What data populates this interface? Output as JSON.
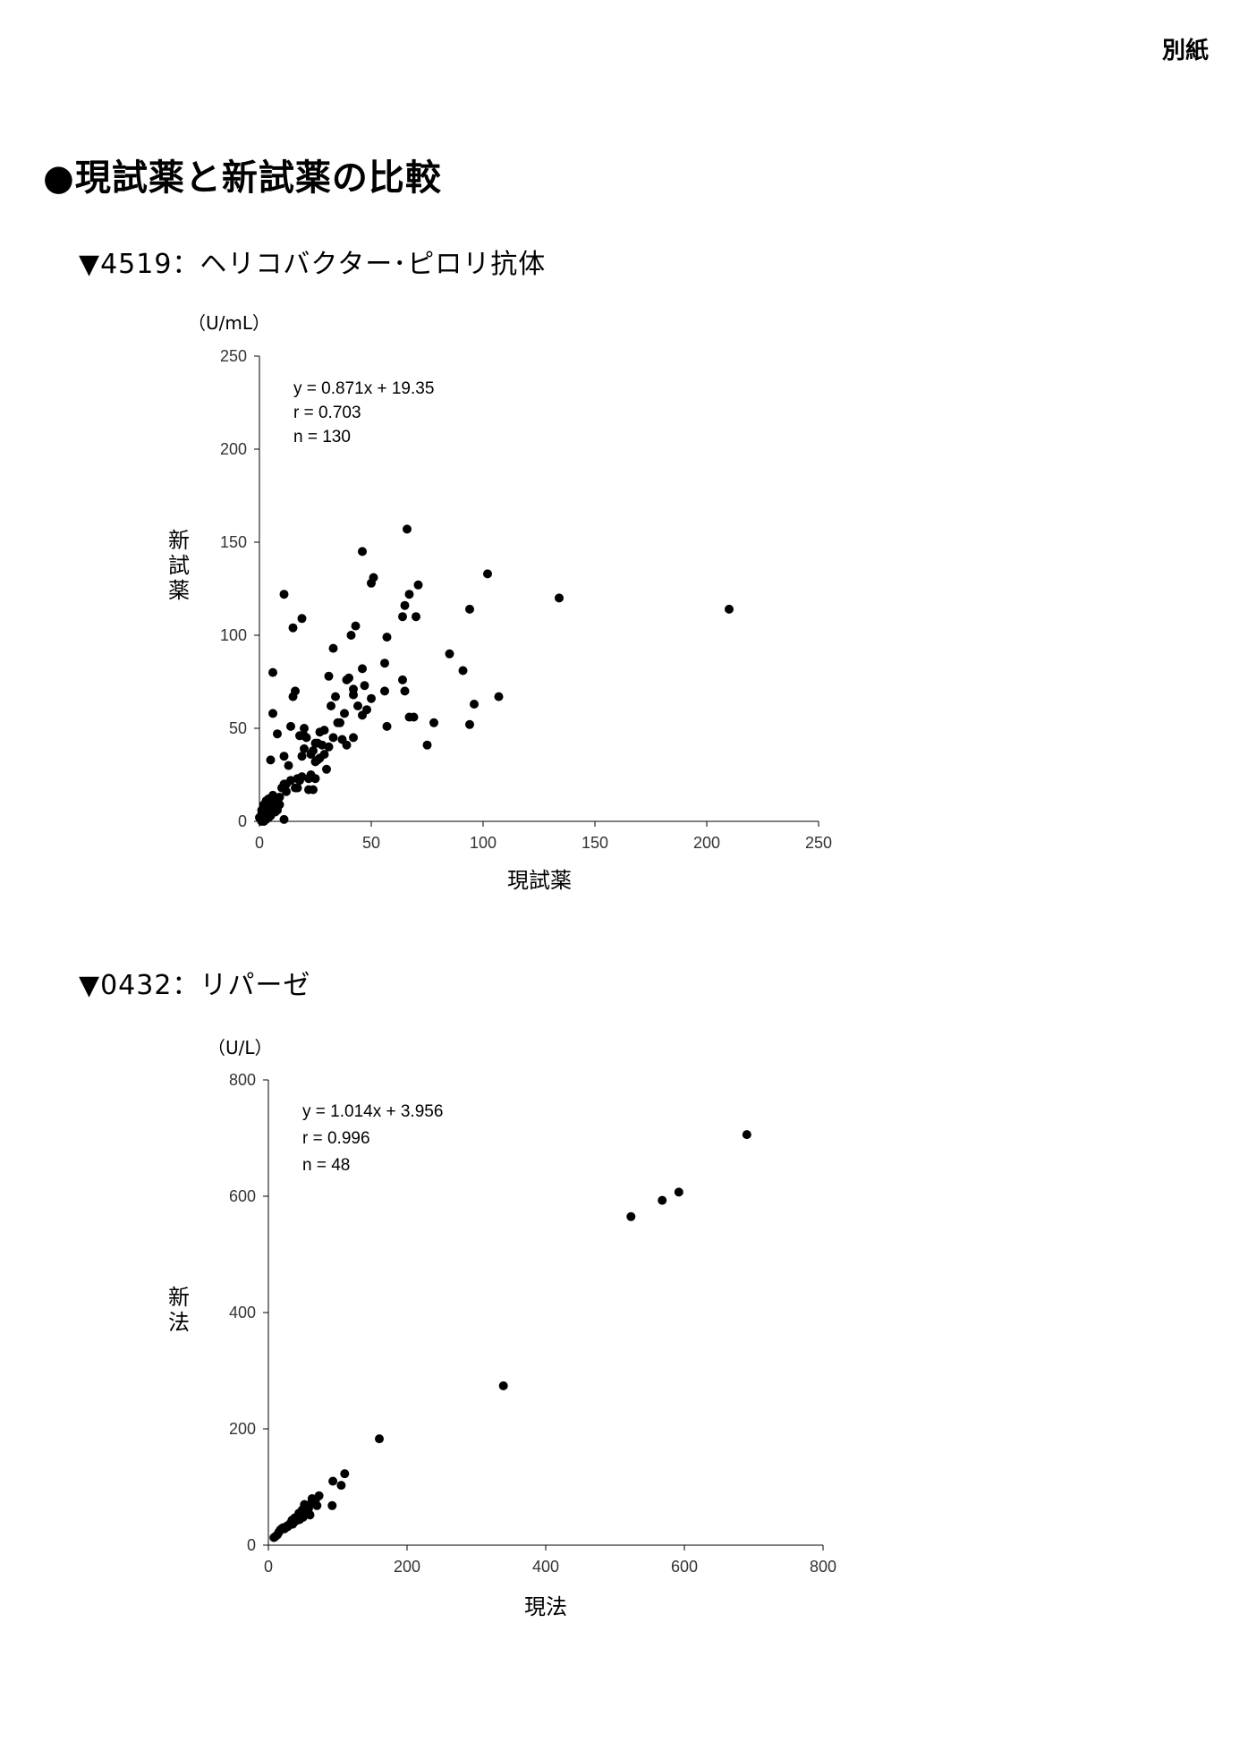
{
  "header": {
    "appendix_label": "別紙"
  },
  "page_title": "●現試薬と新試薬の比較",
  "sections": [
    {
      "title": "▼4519：ヘリコバクター･ピロリ抗体"
    },
    {
      "title": "▼0432：リパーゼ"
    }
  ],
  "chart_data": [
    {
      "type": "scatter",
      "unit_label": "（U/mL）",
      "xlabel": "現試薬",
      "ylabel": "新試薬",
      "xlim": [
        0,
        250
      ],
      "ylim": [
        0,
        250
      ],
      "xticks": [
        "0",
        "50",
        "100",
        "150",
        "200",
        "250"
      ],
      "yticks": [
        "0",
        "50",
        "100",
        "150",
        "200",
        "250"
      ],
      "grid": false,
      "annotations": [
        "y = 0.871x + 19.35",
        "r = 0.703",
        "n = 130"
      ],
      "points": [
        [
          210,
          114
        ],
        [
          134,
          120
        ],
        [
          102,
          133
        ],
        [
          107,
          67
        ],
        [
          96,
          63
        ],
        [
          94,
          114
        ],
        [
          94,
          52
        ],
        [
          91,
          81
        ],
        [
          85,
          90
        ],
        [
          78,
          53
        ],
        [
          75,
          41
        ],
        [
          71,
          127
        ],
        [
          70,
          110
        ],
        [
          69,
          56
        ],
        [
          67,
          122
        ],
        [
          66,
          157
        ],
        [
          67,
          56
        ],
        [
          65,
          116
        ],
        [
          64,
          110
        ],
        [
          64,
          76
        ],
        [
          65,
          70
        ],
        [
          57,
          99
        ],
        [
          57,
          51
        ],
        [
          56,
          85
        ],
        [
          56,
          70
        ],
        [
          51,
          131
        ],
        [
          50,
          128
        ],
        [
          50,
          66
        ],
        [
          46,
          145
        ],
        [
          47,
          73
        ],
        [
          46,
          57
        ],
        [
          46,
          82
        ],
        [
          43,
          105
        ],
        [
          41,
          100
        ],
        [
          42,
          71
        ],
        [
          42,
          68
        ],
        [
          42,
          45
        ],
        [
          40,
          77
        ],
        [
          39,
          76
        ],
        [
          39,
          41
        ],
        [
          36,
          53
        ],
        [
          35,
          53
        ],
        [
          34,
          67
        ],
        [
          33,
          93
        ],
        [
          32,
          62
        ],
        [
          31,
          78
        ],
        [
          30,
          28
        ],
        [
          29,
          49
        ],
        [
          28,
          41
        ],
        [
          27,
          34
        ],
        [
          26,
          42
        ],
        [
          25,
          42
        ],
        [
          25,
          32
        ],
        [
          25,
          23
        ],
        [
          24,
          38
        ],
        [
          23,
          36
        ],
        [
          22,
          17
        ],
        [
          22,
          23
        ],
        [
          20,
          50
        ],
        [
          20,
          46
        ],
        [
          21,
          45
        ],
        [
          20,
          39
        ],
        [
          19,
          35
        ],
        [
          19,
          109
        ],
        [
          18,
          22
        ],
        [
          18,
          46
        ],
        [
          17,
          23
        ],
        [
          16,
          70
        ],
        [
          16,
          18
        ],
        [
          15,
          104
        ],
        [
          15,
          67
        ],
        [
          14,
          51
        ],
        [
          13,
          30
        ],
        [
          12,
          20
        ],
        [
          11,
          122
        ],
        [
          11,
          20
        ],
        [
          11,
          35
        ],
        [
          11,
          1
        ],
        [
          10,
          18
        ],
        [
          9,
          13
        ],
        [
          8,
          47
        ],
        [
          8,
          10
        ],
        [
          8,
          6
        ],
        [
          7,
          5
        ],
        [
          6,
          58
        ],
        [
          6,
          80
        ],
        [
          6,
          14
        ],
        [
          6,
          12
        ],
        [
          5,
          33
        ],
        [
          5,
          9
        ],
        [
          5,
          8
        ],
        [
          5,
          3
        ],
        [
          4,
          12
        ],
        [
          4,
          6
        ],
        [
          4,
          2
        ],
        [
          3,
          11
        ],
        [
          3,
          8
        ],
        [
          3,
          5
        ],
        [
          3,
          3
        ],
        [
          3,
          1
        ],
        [
          2,
          7
        ],
        [
          2,
          5
        ],
        [
          2,
          2
        ],
        [
          2,
          0
        ],
        [
          1,
          6
        ],
        [
          1,
          4
        ],
        [
          1,
          3
        ],
        [
          1,
          1
        ],
        [
          1,
          0
        ],
        [
          0,
          2
        ],
        [
          4,
          4
        ],
        [
          6,
          9
        ],
        [
          7,
          11
        ],
        [
          9,
          9
        ],
        [
          2,
          9
        ],
        [
          12,
          16
        ],
        [
          14,
          22
        ],
        [
          17,
          18
        ],
        [
          19,
          24
        ],
        [
          23,
          25
        ],
        [
          24,
          17
        ],
        [
          26,
          33
        ],
        [
          27,
          48
        ],
        [
          29,
          36
        ],
        [
          31,
          40
        ],
        [
          33,
          45
        ],
        [
          37,
          44
        ],
        [
          38,
          58
        ],
        [
          44,
          62
        ],
        [
          48,
          60
        ]
      ]
    },
    {
      "type": "scatter",
      "unit_label": "（U/L）",
      "xlabel": "現法",
      "ylabel": "新法",
      "xlim": [
        0,
        800
      ],
      "ylim": [
        0,
        800
      ],
      "xticks": [
        "0",
        "200",
        "400",
        "600",
        "800"
      ],
      "yticks": [
        "0",
        "200",
        "400",
        "600",
        "800"
      ],
      "grid": false,
      "annotations": [
        "y = 1.014x + 3.956",
        "r = 0.996",
        "n = 48"
      ],
      "points": [
        [
          690,
          706
        ],
        [
          592,
          607
        ],
        [
          568,
          593
        ],
        [
          523,
          565
        ],
        [
          339,
          274
        ],
        [
          160,
          183
        ],
        [
          110,
          123
        ],
        [
          105,
          103
        ],
        [
          93,
          110
        ],
        [
          92,
          68
        ],
        [
          73,
          85
        ],
        [
          70,
          68
        ],
        [
          68,
          78
        ],
        [
          65,
          73
        ],
        [
          63,
          80
        ],
        [
          60,
          70
        ],
        [
          58,
          63
        ],
        [
          55,
          66
        ],
        [
          55,
          55
        ],
        [
          53,
          60
        ],
        [
          52,
          70
        ],
        [
          50,
          48
        ],
        [
          49,
          61
        ],
        [
          48,
          58
        ],
        [
          46,
          52
        ],
        [
          45,
          44
        ],
        [
          44,
          55
        ],
        [
          42,
          48
        ],
        [
          40,
          42
        ],
        [
          38,
          47
        ],
        [
          37,
          40
        ],
        [
          35,
          36
        ],
        [
          34,
          43
        ],
        [
          32,
          38
        ],
        [
          30,
          35
        ],
        [
          28,
          32
        ],
        [
          27,
          33
        ],
        [
          25,
          30
        ],
        [
          23,
          28
        ],
        [
          21,
          30
        ],
        [
          19,
          28
        ],
        [
          17,
          26
        ],
        [
          15,
          22
        ],
        [
          13,
          18
        ],
        [
          10,
          15
        ],
        [
          8,
          13
        ],
        [
          60,
          52
        ],
        [
          57,
          65
        ]
      ]
    }
  ]
}
